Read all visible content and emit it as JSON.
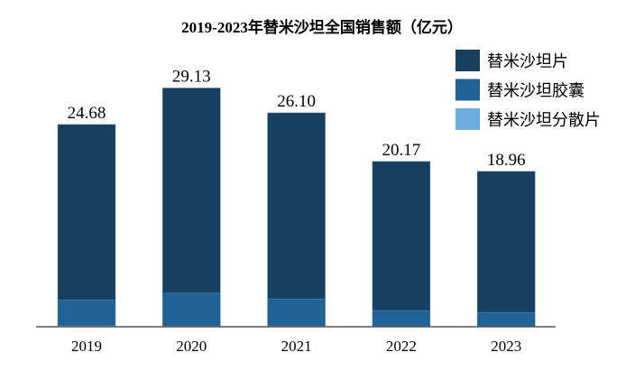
{
  "chart_data": {
    "type": "bar",
    "stacked": true,
    "title": "2019-2023年替米沙坦全国销售额（亿元）",
    "categories": [
      "2019",
      "2020",
      "2021",
      "2022",
      "2023"
    ],
    "totals": [
      24.68,
      29.13,
      26.1,
      20.17,
      18.96
    ],
    "totals_labels": [
      "24.68",
      "29.13",
      "26.10",
      "20.17",
      "18.96"
    ],
    "series": [
      {
        "name": "替米沙坦片",
        "color": "#173f5f",
        "values": [
          21.4,
          25.03,
          22.7,
          18.19,
          17.2
        ]
      },
      {
        "name": "替米沙坦胶囊",
        "color": "#1f6396",
        "values": [
          3.16,
          4.0,
          3.3,
          1.98,
          1.76
        ]
      },
      {
        "name": "替米沙坦分散片",
        "color": "#6aaee0",
        "values": [
          0.12,
          0.1,
          0.1,
          0.0,
          0.0
        ]
      }
    ],
    "ylim": [
      0,
      30
    ],
    "legend": "top-right",
    "grid": false
  }
}
